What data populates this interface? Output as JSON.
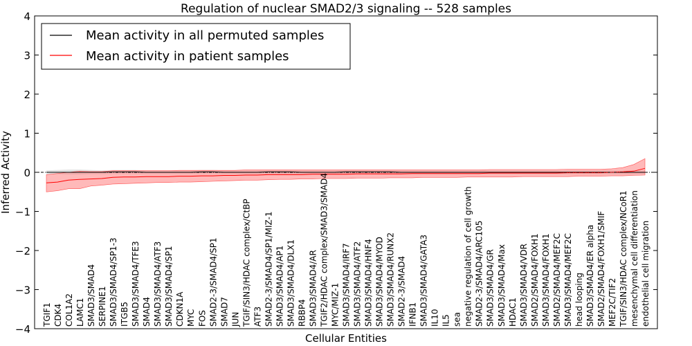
{
  "chart_data": {
    "type": "line",
    "title": "Regulation of nuclear SMAD2/3 signaling -- 528 samples",
    "xlabel": "Cellular Entities",
    "ylabel": "Inferred Activity",
    "ylim": [
      -4,
      4
    ],
    "yticks": [
      -4,
      -3,
      -2,
      -1,
      0,
      1,
      2,
      3,
      4
    ],
    "ytick_labels": [
      "−4",
      "−3",
      "−2",
      "−1",
      "0",
      "1",
      "2",
      "3",
      "4"
    ],
    "legend_position": "top-left",
    "legend": [
      {
        "label": "Mean activity in all permuted samples",
        "color": "#000000"
      },
      {
        "label": "Mean activity in patient samples",
        "color": "#ff0000"
      }
    ],
    "band_color": "#ff8080",
    "permuted_band_color": "#c0c0c0",
    "categories": [
      "TGIF1",
      "CDK4",
      "COL1A2",
      "LAMC1",
      "SMAD3/SMAD4",
      "SERPINE1",
      "SMAD3/SMAD4/SP1-3",
      "ITGB5",
      "SMAD3/SMAD4/TFE3",
      "SMAD4",
      "SMAD3/SMAD4/ATF3",
      "SMAD3/SMAD4/SP1",
      "CDKN1A",
      "MYC",
      "FOS",
      "SMAD2-3/SMAD4/SP1",
      "SMAD7",
      "JUN",
      "TGIF/SIN3/HDAC complex/CtBP",
      "ATF3",
      "SMAD2-3/SMAD4/SP1/MIZ-1",
      "SMAD3/SMAD4/AP1",
      "SMAD3/SMAD4/DLX1",
      "RBBP4",
      "SMAD3/SMAD4/AR",
      "TGIF2/HDAC complex/SMAD3/SMAD4",
      "MYC/MIZ-1",
      "SMAD3/SMAD4/IRF7",
      "SMAD3/SMAD4/ATF2",
      "SMAD3/SMAD4/HNF4",
      "SMAD3/SMAD4/MYOD",
      "SMAD3/SMAD4/RUNX2",
      "SMAD2-3/SMAD4",
      "IFNB1",
      "SMAD3/SMAD4/GATA3",
      "IL10",
      "IL5",
      "sea",
      "negative regulation of cell growth",
      "SMAD2-3/SMAD4/ARC105",
      "SMAD3/SMAD4/GR",
      "SMAD3/SMAD4/Max",
      "HDAC1",
      "SMAD3/SMAD4/VDR",
      "SMAD2/SMAD4/FOXH1",
      "SMAD3/SMAD4/FOXH1",
      "SMAD2/SMAD4/MEF2C",
      "SMAD3/SMAD4/MEF2C",
      "head looping",
      "SMAD3/SMAD4/ER alpha",
      "SMAD2/SMAD4/FOXH1/SMIF",
      "MEF2C/TIF2",
      "TGIF/SIN3/HDAC complex/NCoR1",
      "mesenchymal cell differentiation",
      "endothelial cell migration"
    ],
    "series": [
      {
        "name": "Mean activity in all permuted samples",
        "values": [
          0,
          0,
          0,
          0,
          0,
          0,
          0.01,
          0.01,
          0.01,
          0,
          0,
          0,
          0,
          0,
          0.01,
          0.01,
          0,
          0,
          0,
          0,
          0.01,
          0.01,
          0.01,
          0,
          0,
          0,
          0,
          0.01,
          0.01,
          0.01,
          0.01,
          0.01,
          0,
          0,
          0,
          0,
          0,
          0,
          0,
          0,
          0,
          0,
          0,
          0,
          0,
          0,
          0,
          0,
          0,
          0,
          0,
          0,
          0,
          0,
          0
        ],
        "lower": [
          -0.05,
          -0.05,
          -0.06,
          -0.06,
          -0.05,
          -0.05,
          -0.05,
          -0.05,
          -0.05,
          -0.05,
          -0.05,
          -0.05,
          -0.05,
          -0.05,
          -0.05,
          -0.05,
          -0.05,
          -0.05,
          -0.05,
          -0.05,
          -0.05,
          -0.05,
          -0.05,
          -0.05,
          -0.05,
          -0.05,
          -0.05,
          -0.05,
          -0.05,
          -0.05,
          -0.05,
          -0.05,
          -0.05,
          -0.05,
          -0.05,
          -0.05,
          -0.05,
          -0.05,
          -0.05,
          -0.05,
          -0.05,
          -0.05,
          -0.05,
          -0.05,
          -0.05,
          -0.05,
          -0.05,
          -0.05,
          -0.05,
          -0.05,
          -0.05,
          -0.05,
          -0.05,
          -0.05,
          -0.05
        ],
        "upper": [
          0.05,
          0.06,
          0.07,
          0.07,
          0.06,
          0.05,
          0.06,
          0.06,
          0.06,
          0.05,
          0.05,
          0.05,
          0.05,
          0.05,
          0.06,
          0.06,
          0.05,
          0.05,
          0.05,
          0.05,
          0.06,
          0.06,
          0.06,
          0.05,
          0.05,
          0.05,
          0.05,
          0.06,
          0.06,
          0.06,
          0.06,
          0.06,
          0.05,
          0.05,
          0.05,
          0.05,
          0.05,
          0.05,
          0.05,
          0.05,
          0.05,
          0.05,
          0.05,
          0.05,
          0.05,
          0.05,
          0.05,
          0.05,
          0.05,
          0.05,
          0.05,
          0.05,
          0.05,
          0.05,
          0.05
        ]
      },
      {
        "name": "Mean activity in patient samples",
        "values": [
          -0.27,
          -0.25,
          -0.2,
          -0.18,
          -0.17,
          -0.16,
          -0.13,
          -0.12,
          -0.12,
          -0.11,
          -0.11,
          -0.11,
          -0.1,
          -0.1,
          -0.09,
          -0.09,
          -0.08,
          -0.08,
          -0.07,
          -0.07,
          -0.06,
          -0.06,
          -0.06,
          -0.06,
          -0.05,
          -0.05,
          -0.05,
          -0.05,
          -0.04,
          -0.04,
          -0.04,
          -0.04,
          -0.04,
          -0.03,
          -0.03,
          -0.03,
          -0.03,
          -0.03,
          -0.03,
          -0.03,
          -0.02,
          -0.02,
          -0.02,
          -0.02,
          -0.02,
          -0.02,
          -0.02,
          -0.01,
          -0.01,
          -0.01,
          -0.01,
          0,
          0.01,
          0.03,
          0.1
        ],
        "lower": [
          -0.5,
          -0.47,
          -0.42,
          -0.42,
          -0.35,
          -0.33,
          -0.3,
          -0.29,
          -0.28,
          -0.27,
          -0.26,
          -0.26,
          -0.25,
          -0.25,
          -0.24,
          -0.23,
          -0.22,
          -0.21,
          -0.2,
          -0.2,
          -0.19,
          -0.18,
          -0.18,
          -0.17,
          -0.17,
          -0.16,
          -0.16,
          -0.16,
          -0.15,
          -0.15,
          -0.15,
          -0.14,
          -0.14,
          -0.14,
          -0.13,
          -0.13,
          -0.13,
          -0.13,
          -0.12,
          -0.12,
          -0.12,
          -0.12,
          -0.12,
          -0.11,
          -0.11,
          -0.11,
          -0.11,
          -0.11,
          -0.1,
          -0.1,
          -0.1,
          -0.09,
          -0.09,
          -0.08,
          -0.07
        ],
        "upper": [
          -0.06,
          -0.03,
          0,
          0.03,
          0.02,
          0.02,
          0.04,
          0.04,
          0.04,
          0.04,
          0.04,
          0.04,
          0.05,
          0.05,
          0.05,
          0.05,
          0.05,
          0.05,
          0.06,
          0.06,
          0.06,
          0.06,
          0.06,
          0.06,
          0.06,
          0.06,
          0.06,
          0.06,
          0.06,
          0.06,
          0.06,
          0.06,
          0.06,
          0.06,
          0.06,
          0.06,
          0.06,
          0.06,
          0.06,
          0.06,
          0.07,
          0.07,
          0.07,
          0.07,
          0.07,
          0.07,
          0.07,
          0.08,
          0.08,
          0.08,
          0.08,
          0.09,
          0.12,
          0.2,
          0.35
        ]
      }
    ]
  }
}
